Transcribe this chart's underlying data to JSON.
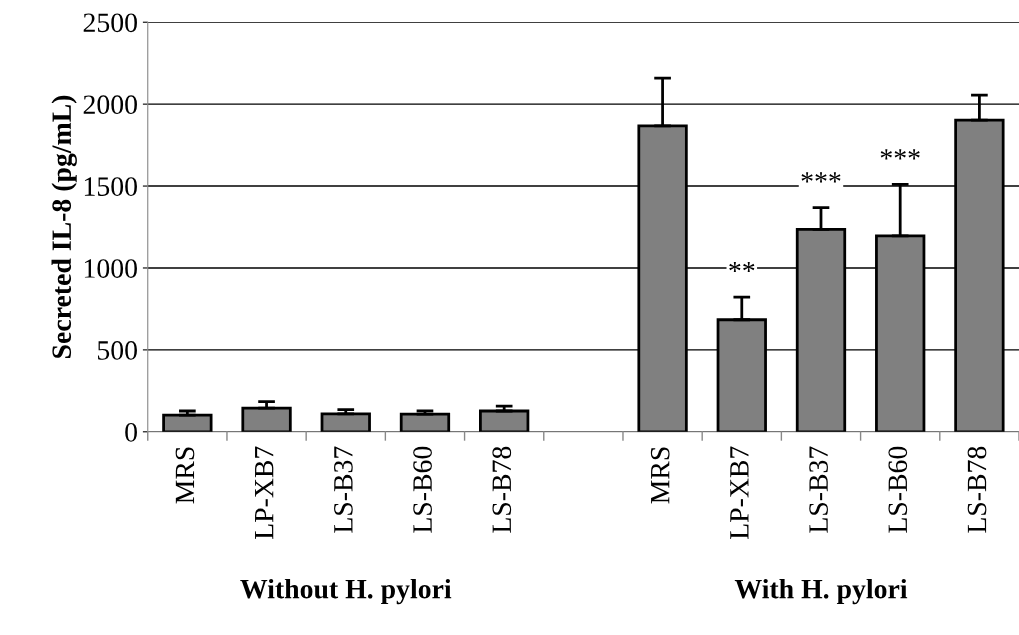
{
  "chart_data": {
    "type": "bar",
    "ylabel": "Secreted IL-8 (pg/mL)",
    "categories": [
      "MRS",
      "LP-XB7",
      "LS-B37",
      "LS-B60",
      "LS-B78",
      null,
      "MRS",
      "LP-XB7",
      "LS-B37",
      "LS-B60",
      "LS-B78"
    ],
    "values": [
      102,
      145,
      110,
      108,
      127,
      null,
      1867,
      684,
      1235,
      1196,
      1902
    ],
    "errors": [
      25,
      39,
      25,
      20,
      30,
      null,
      292,
      138,
      134,
      314,
      153
    ],
    "value_labels": [
      null,
      null,
      null,
      null,
      null,
      null,
      null,
      "**",
      "***",
      "***",
      null
    ],
    "color": "#808080",
    "ylim": [
      0,
      2500
    ],
    "yticks": [
      0,
      500,
      1000,
      1500,
      2000,
      2500
    ],
    "grid": "y",
    "annotations": [
      "Without H. pylori",
      "With H. pylori"
    ]
  }
}
